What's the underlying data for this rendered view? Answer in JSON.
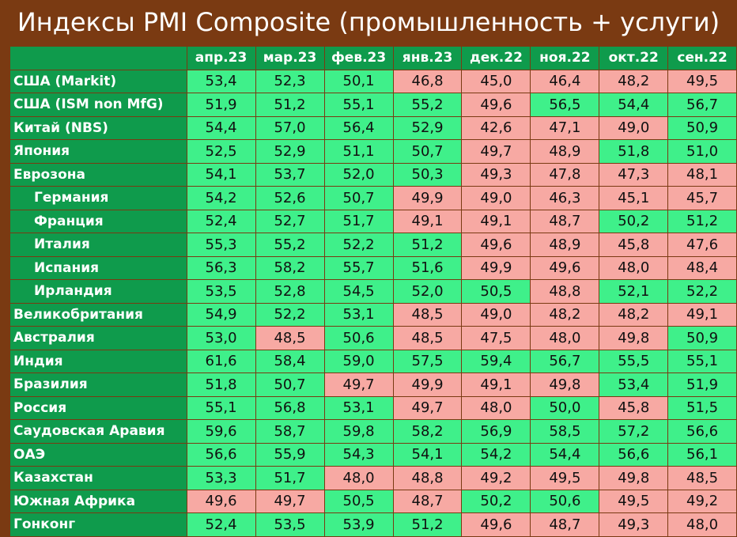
{
  "title": "Индексы PMI Composite (промышленность + услуги)",
  "colors": {
    "frame": "#7a3a12",
    "header": "#0f9b4c",
    "above_50": "#3ff08a",
    "below_50": "#f7a9a3"
  },
  "chart_data": {
    "type": "table",
    "title": "Индексы PMI Composite (промышленность + услуги)",
    "columns": [
      "апр.23",
      "мар.23",
      "фев.23",
      "янв.23",
      "дек.22",
      "ноя.22",
      "окт.22",
      "сен.22"
    ],
    "rows": [
      {
        "label": "США (Markit)",
        "indent": false,
        "values": [
          "53,4",
          "52,3",
          "50,1",
          "46,8",
          "45,0",
          "46,4",
          "48,2",
          "49,5"
        ],
        "status": [
          "up",
          "up",
          "up",
          "down",
          "down",
          "down",
          "down",
          "down"
        ]
      },
      {
        "label": "США (ISM non MfG)",
        "indent": false,
        "values": [
          "51,9",
          "51,2",
          "55,1",
          "55,2",
          "49,6",
          "56,5",
          "54,4",
          "56,7"
        ],
        "status": [
          "up",
          "up",
          "up",
          "up",
          "down",
          "up",
          "up",
          "up"
        ]
      },
      {
        "label": "Китай (NBS)",
        "indent": false,
        "values": [
          "54,4",
          "57,0",
          "56,4",
          "52,9",
          "42,6",
          "47,1",
          "49,0",
          "50,9"
        ],
        "status": [
          "up",
          "up",
          "up",
          "up",
          "down",
          "down",
          "down",
          "up"
        ]
      },
      {
        "label": "Япония",
        "indent": false,
        "values": [
          "52,5",
          "52,9",
          "51,1",
          "50,7",
          "49,7",
          "48,9",
          "51,8",
          "51,0"
        ],
        "status": [
          "up",
          "up",
          "up",
          "up",
          "down",
          "down",
          "up",
          "up"
        ]
      },
      {
        "label": "Еврозона",
        "indent": false,
        "values": [
          "54,1",
          "53,7",
          "52,0",
          "50,3",
          "49,3",
          "47,8",
          "47,3",
          "48,1"
        ],
        "status": [
          "up",
          "up",
          "up",
          "up",
          "down",
          "down",
          "down",
          "down"
        ]
      },
      {
        "label": "Германия",
        "indent": true,
        "values": [
          "54,2",
          "52,6",
          "50,7",
          "49,9",
          "49,0",
          "46,3",
          "45,1",
          "45,7"
        ],
        "status": [
          "up",
          "up",
          "up",
          "down",
          "down",
          "down",
          "down",
          "down"
        ]
      },
      {
        "label": "Франция",
        "indent": true,
        "values": [
          "52,4",
          "52,7",
          "51,7",
          "49,1",
          "49,1",
          "48,7",
          "50,2",
          "51,2"
        ],
        "status": [
          "up",
          "up",
          "up",
          "down",
          "down",
          "down",
          "up",
          "up"
        ]
      },
      {
        "label": "Италия",
        "indent": true,
        "values": [
          "55,3",
          "55,2",
          "52,2",
          "51,2",
          "49,6",
          "48,9",
          "45,8",
          "47,6"
        ],
        "status": [
          "up",
          "up",
          "up",
          "up",
          "down",
          "down",
          "down",
          "down"
        ]
      },
      {
        "label": "Испания",
        "indent": true,
        "values": [
          "56,3",
          "58,2",
          "55,7",
          "51,6",
          "49,9",
          "49,6",
          "48,0",
          "48,4"
        ],
        "status": [
          "up",
          "up",
          "up",
          "up",
          "down",
          "down",
          "down",
          "down"
        ]
      },
      {
        "label": "Ирландия",
        "indent": true,
        "values": [
          "53,5",
          "52,8",
          "54,5",
          "52,0",
          "50,5",
          "48,8",
          "52,1",
          "52,2"
        ],
        "status": [
          "up",
          "up",
          "up",
          "up",
          "up",
          "down",
          "up",
          "up"
        ]
      },
      {
        "label": "Великобритания",
        "indent": false,
        "values": [
          "54,9",
          "52,2",
          "53,1",
          "48,5",
          "49,0",
          "48,2",
          "48,2",
          "49,1"
        ],
        "status": [
          "up",
          "up",
          "up",
          "down",
          "down",
          "down",
          "down",
          "down"
        ]
      },
      {
        "label": "Австралия",
        "indent": false,
        "values": [
          "53,0",
          "48,5",
          "50,6",
          "48,5",
          "47,5",
          "48,0",
          "49,8",
          "50,9"
        ],
        "status": [
          "up",
          "down",
          "up",
          "down",
          "down",
          "down",
          "down",
          "up"
        ]
      },
      {
        "label": "Индия",
        "indent": false,
        "values": [
          "61,6",
          "58,4",
          "59,0",
          "57,5",
          "59,4",
          "56,7",
          "55,5",
          "55,1"
        ],
        "status": [
          "up",
          "up",
          "up",
          "up",
          "up",
          "up",
          "up",
          "up"
        ]
      },
      {
        "label": "Бразилия",
        "indent": false,
        "values": [
          "51,8",
          "50,7",
          "49,7",
          "49,9",
          "49,1",
          "49,8",
          "53,4",
          "51,9"
        ],
        "status": [
          "up",
          "up",
          "down",
          "down",
          "down",
          "down",
          "up",
          "up"
        ]
      },
      {
        "label": "Россия",
        "indent": false,
        "values": [
          "55,1",
          "56,8",
          "53,1",
          "49,7",
          "48,0",
          "50,0",
          "45,8",
          "51,5"
        ],
        "status": [
          "up",
          "up",
          "up",
          "down",
          "down",
          "up",
          "down",
          "up"
        ]
      },
      {
        "label": "Саудовская Аравия",
        "indent": false,
        "values": [
          "59,6",
          "58,7",
          "59,8",
          "58,2",
          "56,9",
          "58,5",
          "57,2",
          "56,6"
        ],
        "status": [
          "up",
          "up",
          "up",
          "up",
          "up",
          "up",
          "up",
          "up"
        ]
      },
      {
        "label": "ОАЭ",
        "indent": false,
        "values": [
          "56,6",
          "55,9",
          "54,3",
          "54,1",
          "54,2",
          "54,4",
          "56,6",
          "56,1"
        ],
        "status": [
          "up",
          "up",
          "up",
          "up",
          "up",
          "up",
          "up",
          "up"
        ]
      },
      {
        "label": "Казахстан",
        "indent": false,
        "values": [
          "53,3",
          "51,7",
          "48,0",
          "48,8",
          "49,2",
          "49,5",
          "49,8",
          "48,5"
        ],
        "status": [
          "up",
          "up",
          "down",
          "down",
          "down",
          "down",
          "down",
          "down"
        ]
      },
      {
        "label": "Южная Африка",
        "indent": false,
        "values": [
          "49,6",
          "49,7",
          "50,5",
          "48,7",
          "50,2",
          "50,6",
          "49,5",
          "49,2"
        ],
        "status": [
          "down",
          "down",
          "up",
          "down",
          "up",
          "up",
          "down",
          "down"
        ]
      },
      {
        "label": "Гонконг",
        "indent": false,
        "values": [
          "52,4",
          "53,5",
          "53,9",
          "51,2",
          "49,6",
          "48,7",
          "49,3",
          "48,0"
        ],
        "status": [
          "up",
          "up",
          "up",
          "up",
          "down",
          "down",
          "down",
          "down"
        ]
      }
    ]
  }
}
